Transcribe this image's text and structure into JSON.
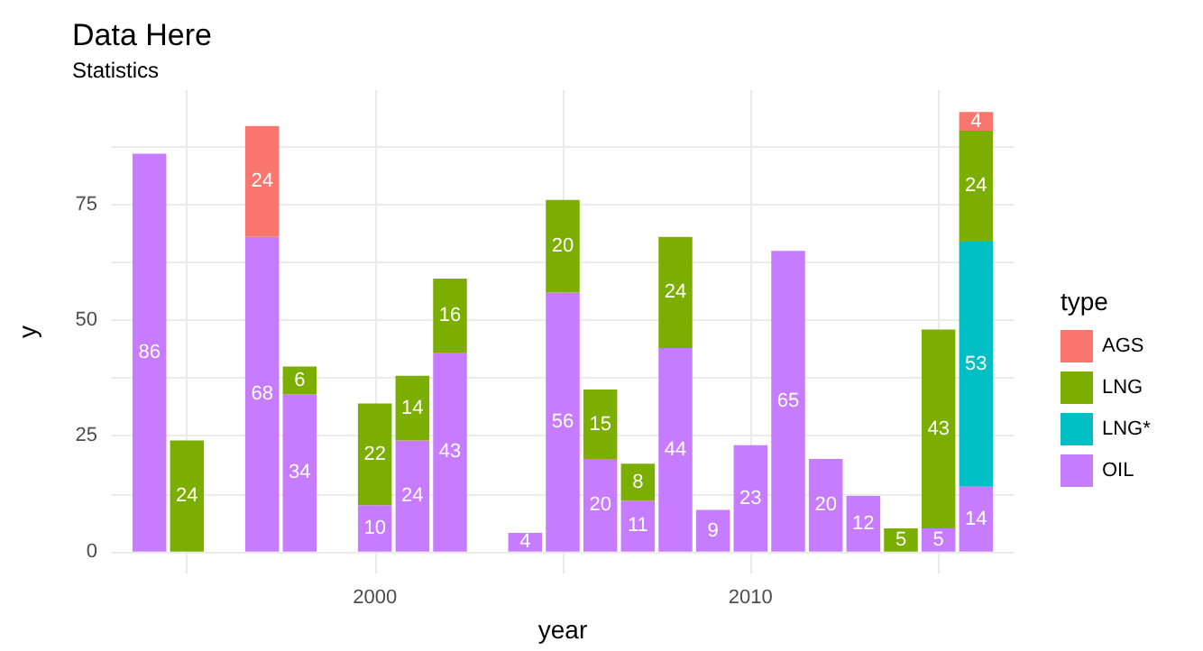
{
  "chart_data": {
    "type": "bar",
    "title": "Data Here",
    "subtitle": "Statistics",
    "xlabel": "year",
    "ylabel": "y",
    "legend_title": "type",
    "legend": "right",
    "stacked": true,
    "data_labels": true,
    "grid": true,
    "x": [
      1994,
      1995,
      1997,
      1998,
      2000,
      2001,
      2002,
      2004,
      2005,
      2006,
      2007,
      2008,
      2009,
      2010,
      2011,
      2012,
      2013,
      2014,
      2015,
      2016
    ],
    "series": [
      {
        "name": "OIL",
        "color": "#c77cff",
        "values": [
          86,
          null,
          68,
          34,
          10,
          24,
          43,
          4,
          56,
          20,
          11,
          44,
          9,
          23,
          65,
          20,
          12,
          null,
          5,
          14
        ]
      },
      {
        "name": "LNG*",
        "color": "#00bfc4",
        "values": [
          null,
          null,
          null,
          null,
          null,
          null,
          null,
          null,
          null,
          null,
          null,
          null,
          null,
          null,
          null,
          null,
          null,
          null,
          null,
          53
        ]
      },
      {
        "name": "LNG",
        "color": "#7cae00",
        "values": [
          null,
          24,
          null,
          6,
          22,
          14,
          16,
          null,
          20,
          15,
          8,
          24,
          null,
          null,
          null,
          null,
          null,
          5,
          43,
          24
        ]
      },
      {
        "name": "AGS",
        "color": "#f8766d",
        "values": [
          null,
          null,
          24,
          null,
          null,
          null,
          null,
          null,
          null,
          null,
          null,
          null,
          null,
          null,
          null,
          null,
          null,
          null,
          null,
          4
        ]
      }
    ],
    "xlim": [
      1993,
      2017
    ],
    "xticks": [
      {
        "value": 1995,
        "label": null
      },
      2000,
      {
        "value": 2005,
        "label": null
      },
      2010,
      {
        "value": 2015,
        "label": null
      }
    ],
    "ylim": [
      -4.75,
      99.75
    ],
    "yticks": [
      0,
      {
        "value": 12.5,
        "label": null
      },
      25,
      {
        "value": 37.5,
        "label": null
      },
      50,
      {
        "value": 62.5,
        "label": null
      },
      75,
      {
        "value": 87.5,
        "label": null
      }
    ]
  }
}
